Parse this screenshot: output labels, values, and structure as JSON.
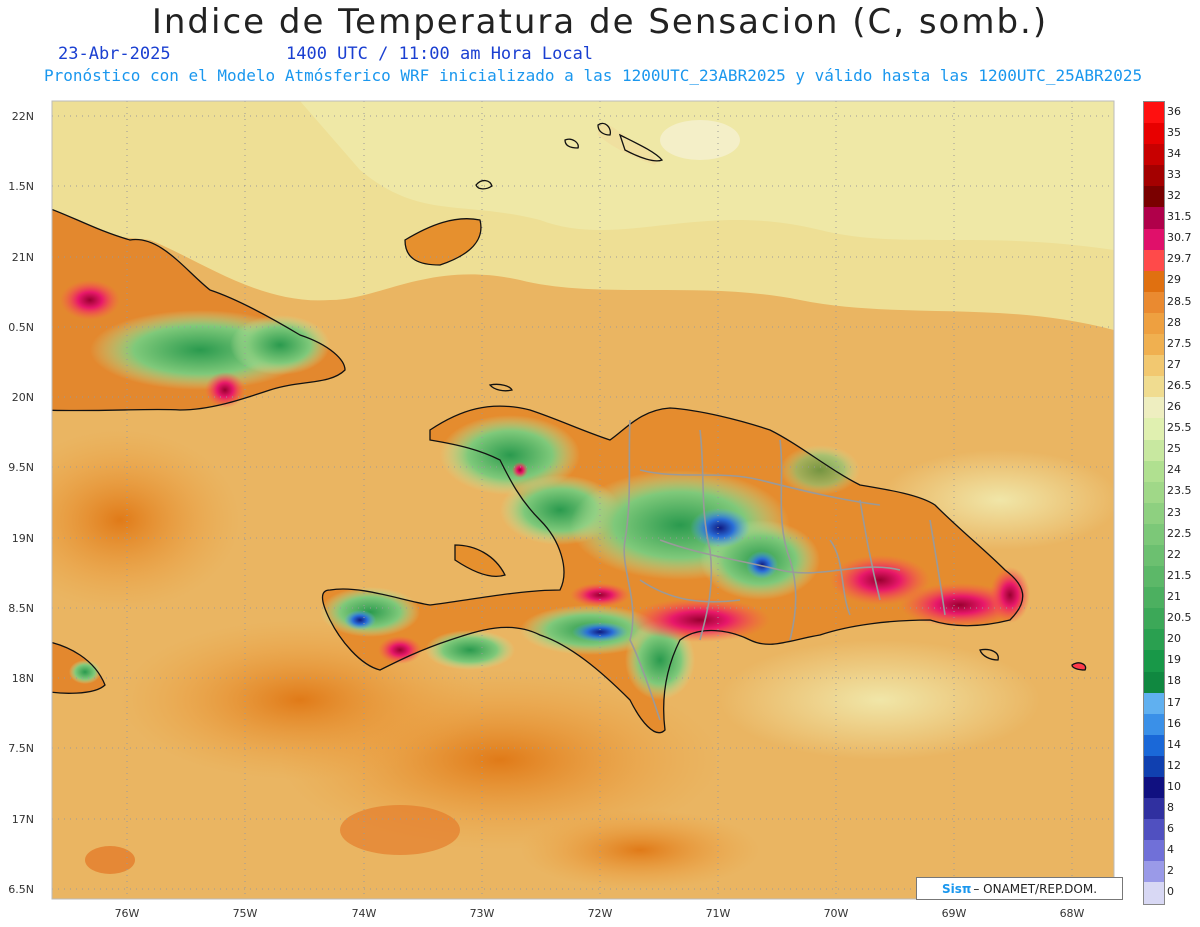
{
  "header": {
    "title": "Indice de Temperatura de Sensacion (C, somb.)",
    "date": "23-Abr-2025",
    "time": "1400 UTC / 11:00 am Hora Local",
    "run_info": "Pronóstico con el Modelo Atmósferico WRF inicializado a las 1200UTC_23ABR2025 y válido hasta las  1200UTC_25ABR2025"
  },
  "map": {
    "lat_labels": [
      "22N",
      "1.5N",
      "21N",
      "0.5N",
      "20N",
      "9.5N",
      "19N",
      "8.5N",
      "18N",
      "7.5N",
      "17N",
      "6.5N"
    ],
    "lon_labels": [
      "76W",
      "75W",
      "74W",
      "73W",
      "72W",
      "71W",
      "70W",
      "69W",
      "68W"
    ]
  },
  "legend": {
    "labels": [
      "36",
      "35",
      "34",
      "33",
      "32",
      "31.5",
      "30.7",
      "29.7",
      "29",
      "28.5",
      "28",
      "27.5",
      "27",
      "26.5",
      "26",
      "25.5",
      "25",
      "24",
      "23.5",
      "23",
      "22.5",
      "22",
      "21.5",
      "21",
      "20.5",
      "20",
      "19",
      "18",
      "17",
      "16",
      "14",
      "12",
      "10",
      "8",
      "6",
      "4",
      "2",
      "0"
    ],
    "colors": [
      "#ff1010",
      "#e80000",
      "#c80000",
      "#a40000",
      "#7a0000",
      "#b0004a",
      "#e0106a",
      "#ff4a4a",
      "#e07010",
      "#ea8a30",
      "#eea040",
      "#f0b050",
      "#f2c870",
      "#f0dc90",
      "#eeeec0",
      "#e0f0b0",
      "#c8e8a0",
      "#b0e090",
      "#a0d888",
      "#8ed080",
      "#7cc878",
      "#6cc070",
      "#5cb868",
      "#4cb060",
      "#3ca858",
      "#2aa050",
      "#189848",
      "#108840",
      "#60b0f0",
      "#3a90e8",
      "#1a68d8",
      "#1040b0",
      "#101080",
      "#3030a0",
      "#5050c0",
      "#7070d8",
      "#9a9ae8",
      "#d8d8f4"
    ]
  },
  "credit": {
    "brand": "Sisπ",
    "org": "– ONAMET/REP.DOM."
  },
  "colors": {
    "ocean": "#f0d890",
    "ocean_warm": "#eab25c",
    "land_cool": "#78c070",
    "land_hot": "#e83a50"
  }
}
